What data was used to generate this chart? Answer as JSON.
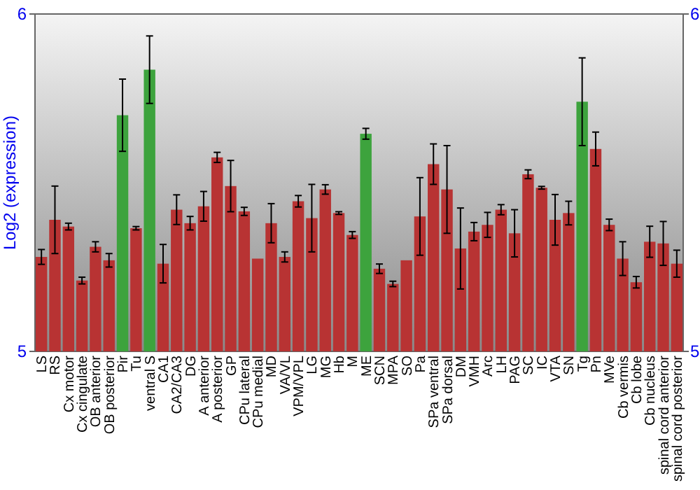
{
  "chart_data": {
    "type": "bar",
    "ylabel": "Log2 (expression)",
    "categories": [
      "LS",
      "RS",
      "Cx motor",
      "Cx cingulate",
      "OB anterior",
      "OB posterior",
      "Pir",
      "Tu",
      "ventral S",
      "CA1",
      "CA2/CA3",
      "DG",
      "A anterior",
      "A posterior",
      "GP",
      "CPu lateral",
      "CPu medial",
      "MD",
      "VA/VL",
      "VPM/VPL",
      "LG",
      "MG",
      "Hb",
      "M",
      "ME",
      "SCN",
      "MPA",
      "SO",
      "Pa",
      "SPa ventral",
      "SPa dorsal",
      "DM",
      "VMH",
      "Arc",
      "LH",
      "PAG",
      "SC",
      "IC",
      "VTA",
      "SN",
      "Tg",
      "Pn",
      "MVe",
      "Cb vermis",
      "Cb lobe",
      "Cb nucleus",
      "spinal cord anterior",
      "spinal cord posterior"
    ],
    "values": [
      5.28,
      5.39,
      5.37,
      5.21,
      5.31,
      5.27,
      5.7,
      5.365,
      5.835,
      5.26,
      5.42,
      5.38,
      5.43,
      5.575,
      5.49,
      5.415,
      5.275,
      5.38,
      5.28,
      5.445,
      5.395,
      5.48,
      5.41,
      5.345,
      5.645,
      5.245,
      5.2,
      5.27,
      5.4,
      5.555,
      5.48,
      5.305,
      5.355,
      5.375,
      5.42,
      5.35,
      5.525,
      5.485,
      5.39,
      5.41,
      5.74,
      5.6,
      5.375,
      5.275,
      5.205,
      5.325,
      5.32,
      5.26
    ],
    "errors": [
      0.022,
      0.1,
      0.01,
      0.01,
      0.015,
      0.02,
      0.107,
      0.005,
      0.1,
      0.057,
      0.044,
      0.02,
      0.044,
      0.015,
      0.076,
      0.012,
      null,
      0.058,
      0.015,
      0.017,
      0.1,
      0.014,
      0.004,
      0.01,
      0.016,
      0.014,
      0.008,
      null,
      0.115,
      0.06,
      0.13,
      0.12,
      0.027,
      0.037,
      0.015,
      0.07,
      0.013,
      0.004,
      0.075,
      0.035,
      0.13,
      0.05,
      0.017,
      0.05,
      0.017,
      0.046,
      0.065,
      0.04
    ],
    "colors": [
      "#b83333",
      "#b83333",
      "#b83333",
      "#b83333",
      "#b83333",
      "#b83333",
      "#3da33d",
      "#b83333",
      "#3da33d",
      "#b83333",
      "#b83333",
      "#b83333",
      "#b83333",
      "#b83333",
      "#b83333",
      "#b83333",
      "#b83333",
      "#b83333",
      "#b83333",
      "#b83333",
      "#b83333",
      "#b83333",
      "#b83333",
      "#b83333",
      "#3da33d",
      "#b83333",
      "#b83333",
      "#b83333",
      "#b83333",
      "#b83333",
      "#b83333",
      "#b83333",
      "#b83333",
      "#b83333",
      "#b83333",
      "#b83333",
      "#b83333",
      "#b83333",
      "#b83333",
      "#b83333",
      "#3da33d",
      "#b83333",
      "#b83333",
      "#b83333",
      "#b83333",
      "#b83333",
      "#b83333",
      "#b83333"
    ],
    "ylim": [
      5,
      6
    ],
    "yticks": [
      5,
      6
    ],
    "y2lim": [
      5,
      6
    ],
    "y2ticks": [
      5,
      6
    ],
    "grid": false
  }
}
